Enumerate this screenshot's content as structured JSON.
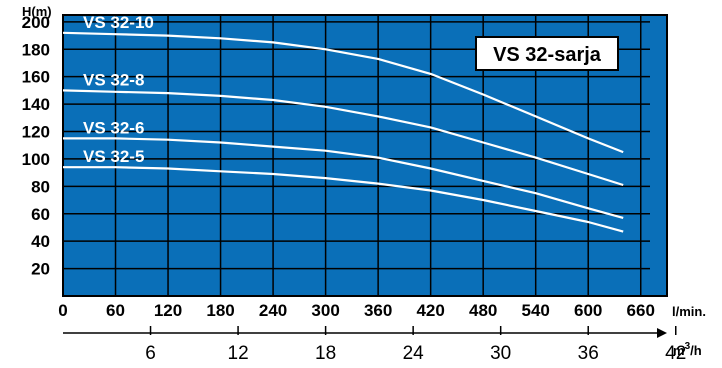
{
  "chart_data": {
    "type": "line",
    "title": "VS 32-sarja",
    "ylabel": "H(m)",
    "xlabel": "l/min.",
    "x2label": "m3/h",
    "ylim": [
      0,
      205
    ],
    "xlim": [
      0,
      690
    ],
    "y_ticks": [
      20,
      40,
      60,
      80,
      100,
      120,
      140,
      160,
      180,
      200
    ],
    "x_ticks": [
      0,
      60,
      120,
      180,
      240,
      300,
      360,
      420,
      480,
      540,
      600,
      660
    ],
    "x2_ticks": [
      6,
      12,
      18,
      24,
      30,
      36,
      42
    ],
    "grid": true,
    "colors": {
      "plot_bg": "#0a6fb8",
      "grid": "#000000",
      "curve": "#ffffff",
      "badge_bg": "#ffffff"
    },
    "series": [
      {
        "name": "VS 32-10",
        "x": [
          0,
          60,
          120,
          180,
          240,
          300,
          360,
          420,
          480,
          540,
          600,
          640
        ],
        "y": [
          192,
          191,
          190,
          188,
          185,
          180,
          173,
          162,
          147,
          131,
          115,
          105
        ]
      },
      {
        "name": "VS 32-8",
        "x": [
          0,
          60,
          120,
          180,
          240,
          300,
          360,
          420,
          480,
          540,
          600,
          640
        ],
        "y": [
          150,
          149,
          148,
          146,
          143,
          138,
          131,
          123,
          112,
          101,
          89,
          81
        ]
      },
      {
        "name": "VS 32-6",
        "x": [
          0,
          60,
          120,
          180,
          240,
          300,
          360,
          420,
          480,
          540,
          600,
          640
        ],
        "y": [
          115,
          115,
          114,
          112,
          109,
          106,
          101,
          93,
          84,
          75,
          64,
          57
        ]
      },
      {
        "name": "VS 32-5",
        "x": [
          0,
          60,
          120,
          180,
          240,
          300,
          360,
          420,
          480,
          540,
          600,
          640
        ],
        "y": [
          94,
          94,
          93,
          91,
          89,
          86,
          82,
          77,
          70,
          62,
          54,
          47
        ]
      }
    ]
  }
}
